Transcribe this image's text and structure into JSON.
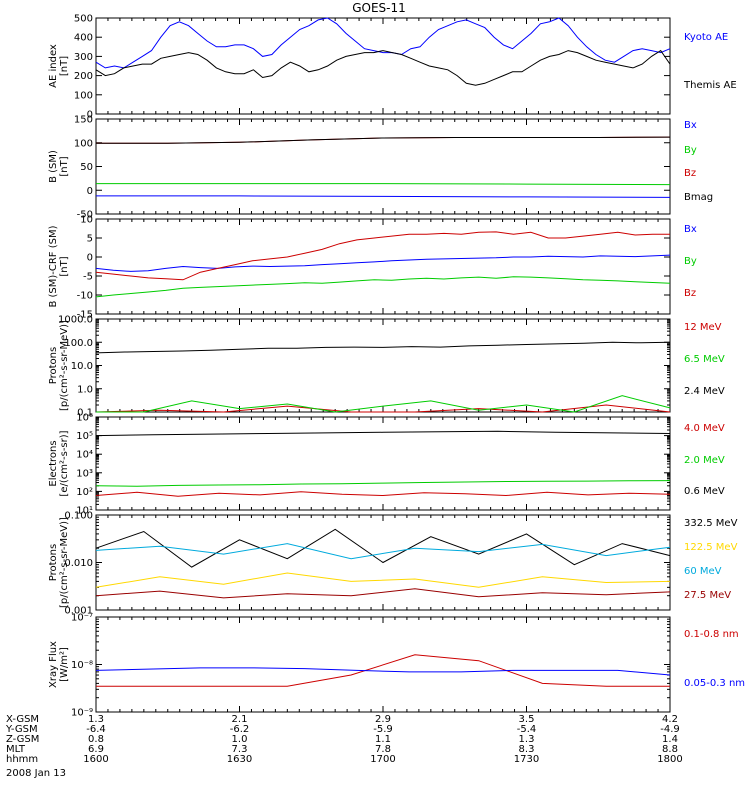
{
  "title": "GOES-11",
  "date_label": "2008 Jan 13",
  "colors": {
    "blue": "#0000ff",
    "green": "#00cc00",
    "red": "#cc0000",
    "darkred": "#990000",
    "black": "#000000",
    "yellow": "#ffd800",
    "cyan": "#00aadd"
  },
  "chart_data": [
    {
      "type": "line",
      "ylabel": [
        "AE index",
        "[nT]"
      ],
      "ylim": [
        0,
        500
      ],
      "yticks": [
        0,
        100,
        200,
        300,
        400,
        500
      ],
      "series": [
        {
          "name": "Kyoto AE",
          "color": "#0000ff",
          "values": [
            270,
            240,
            250,
            240,
            270,
            300,
            330,
            400,
            460,
            480,
            460,
            420,
            380,
            350,
            350,
            360,
            360,
            340,
            300,
            310,
            360,
            400,
            440,
            460,
            490,
            500,
            470,
            420,
            380,
            340,
            330,
            320,
            320,
            310,
            340,
            350,
            400,
            440,
            460,
            480,
            490,
            470,
            450,
            400,
            360,
            340,
            380,
            420,
            470,
            480,
            500,
            460,
            400,
            350,
            310,
            280,
            270,
            300,
            330,
            340,
            330,
            320,
            340
          ]
        },
        {
          "name": "Themis AE",
          "color": "#000000",
          "values": [
            230,
            200,
            210,
            240,
            250,
            260,
            260,
            290,
            300,
            310,
            320,
            310,
            280,
            240,
            220,
            210,
            210,
            230,
            190,
            200,
            240,
            270,
            250,
            220,
            230,
            250,
            280,
            300,
            310,
            320,
            320,
            330,
            320,
            310,
            290,
            270,
            250,
            240,
            230,
            200,
            160,
            150,
            160,
            180,
            200,
            220,
            220,
            250,
            280,
            300,
            310,
            330,
            320,
            300,
            280,
            270,
            260,
            250,
            240,
            260,
            300,
            330,
            260
          ]
        }
      ]
    },
    {
      "type": "line",
      "ylabel": [
        "B (SM)",
        "[nT]"
      ],
      "ylim": [
        -50,
        150
      ],
      "yticks": [
        -50,
        0,
        50,
        100,
        150
      ],
      "series": [
        {
          "name": "Bx",
          "color": "#0000ff",
          "values": [
            -12,
            -12,
            -13,
            -14,
            -15
          ]
        },
        {
          "name": "By",
          "color": "#00cc00",
          "values": [
            14,
            14,
            14,
            13,
            12
          ]
        },
        {
          "name": "Bz",
          "color": "#cc0000",
          "values": [
            99,
            99,
            101,
            106,
            110,
            111,
            111,
            111,
            112
          ]
        },
        {
          "name": "Bmag",
          "color": "#000000",
          "values": [
            99,
            99,
            101,
            106,
            110,
            111,
            111,
            111,
            112
          ]
        }
      ]
    },
    {
      "type": "line",
      "ylabel": [
        "B (SM)-CRF (SM)",
        "[nT]"
      ],
      "ylim": [
        -15,
        10
      ],
      "yticks": [
        -15,
        -10,
        -5,
        0,
        5,
        10
      ],
      "series": [
        {
          "name": "Bx",
          "color": "#0000ff",
          "values": [
            -3,
            -3.5,
            -3.8,
            -3.6,
            -3,
            -2.5,
            -2.8,
            -3,
            -2.6,
            -2.4,
            -2.5,
            -2.4,
            -2.3,
            -2,
            -1.8,
            -1.5,
            -1.3,
            -1,
            -0.8,
            -0.6,
            -0.5,
            -0.4,
            -0.3,
            -0.2,
            0,
            0,
            0.2,
            0.1,
            0,
            0.3,
            0.2,
            0.1,
            0.3,
            0.5
          ]
        },
        {
          "name": "By",
          "color": "#00cc00",
          "values": [
            -10.5,
            -10,
            -9.6,
            -9.2,
            -8.8,
            -8.2,
            -8,
            -7.8,
            -7.6,
            -7.4,
            -7.2,
            -7,
            -6.8,
            -6.9,
            -6.6,
            -6.3,
            -6,
            -6.1,
            -5.8,
            -5.6,
            -5.8,
            -5.5,
            -5.3,
            -5.6,
            -5.2,
            -5.3,
            -5.5,
            -5.7,
            -6,
            -6.1,
            -6.3,
            -6.5,
            -6.7,
            -6.9
          ]
        },
        {
          "name": "Bz",
          "color": "#cc0000",
          "values": [
            -4,
            -4.5,
            -5,
            -5.5,
            -5.7,
            -6,
            -4,
            -3,
            -2,
            -1,
            -0.5,
            0,
            1,
            2,
            3.5,
            4.5,
            5,
            5.5,
            6,
            6,
            6.2,
            6,
            6.5,
            6.6,
            6,
            6.5,
            5,
            5,
            5.5,
            6,
            6.5,
            5.8,
            6,
            6
          ]
        }
      ]
    },
    {
      "type": "line",
      "ylabel": [
        "Protons",
        "[p/(cm²-s-sr-MeV)]"
      ],
      "yscale": "log",
      "ylim": [
        0.1,
        1000
      ],
      "yticks": [
        0.1,
        1.0,
        10.0,
        100.0,
        1000.0
      ],
      "ytick_labels": [
        "0.1",
        "1.0",
        "10.0",
        "100.0",
        "1000.0"
      ],
      "series": [
        {
          "name": "12 MeV",
          "color": "#cc0000",
          "values": [
            0.1,
            0.12,
            0.1,
            0.18,
            0.1,
            0.1,
            0.14,
            0.1,
            0.2,
            0.1
          ]
        },
        {
          "name": "6.5 MeV",
          "color": "#00cc00",
          "values": [
            0.1,
            0.1,
            0.3,
            0.14,
            0.22,
            0.1,
            0.18,
            0.3,
            0.12,
            0.2,
            0.1,
            0.5,
            0.15
          ]
        },
        {
          "name": "2.4 MeV",
          "color": "#000000",
          "values": [
            35,
            38,
            40,
            42,
            45,
            50,
            55,
            55,
            60,
            62,
            60,
            65,
            62,
            70,
            75,
            80,
            85,
            90,
            100,
            95,
            100
          ]
        }
      ]
    },
    {
      "type": "line",
      "ylabel": [
        "Electrons",
        "[e/(cm²-s-sr)]"
      ],
      "yscale": "log",
      "ylim": [
        10,
        1000000
      ],
      "yticks": [
        10,
        100,
        1000,
        10000,
        100000,
        1000000
      ],
      "ytick_labels": [
        "10¹",
        "10²",
        "10³",
        "10⁴",
        "10⁵",
        "10⁶"
      ],
      "series": [
        {
          "name": "4.0 MeV",
          "color": "#cc0000",
          "values": [
            60,
            90,
            55,
            80,
            65,
            95,
            70,
            60,
            85,
            75,
            60,
            90,
            65,
            80,
            70
          ]
        },
        {
          "name": "2.0 MeV",
          "color": "#00cc00",
          "values": [
            200,
            190,
            210,
            220,
            230,
            250,
            260,
            280,
            300,
            320,
            340,
            350,
            360,
            370,
            380
          ]
        },
        {
          "name": "0.6 MeV",
          "color": "#000000",
          "values": [
            100000,
            110000,
            120000,
            130000,
            140000,
            150000,
            160000,
            170000,
            150000,
            140000,
            130000
          ]
        }
      ]
    },
    {
      "type": "line",
      "ylabel": [
        "Protons",
        "[p/(cm²-s-sr-MeV)]"
      ],
      "yscale": "log",
      "ylim": [
        0.001,
        0.1
      ],
      "yticks": [
        0.001,
        0.01,
        0.1
      ],
      "ytick_labels": [
        "0.001",
        "0.010",
        "0.100"
      ],
      "series": [
        {
          "name": "332.5 MeV",
          "color": "#000000",
          "values": [
            0.02,
            0.045,
            0.008,
            0.03,
            0.012,
            0.05,
            0.01,
            0.035,
            0.015,
            0.04,
            0.009,
            0.025,
            0.014
          ]
        },
        {
          "name": "122.5 MeV",
          "color": "#ffd800",
          "values": [
            0.003,
            0.005,
            0.0035,
            0.006,
            0.004,
            0.0045,
            0.003,
            0.005,
            0.0038,
            0.004
          ]
        },
        {
          "name": "60 MeV",
          "color": "#00aadd",
          "values": [
            0.018,
            0.022,
            0.015,
            0.025,
            0.012,
            0.02,
            0.017,
            0.024,
            0.014,
            0.021
          ]
        },
        {
          "name": "27.5 MeV",
          "color": "#990000",
          "values": [
            0.002,
            0.0025,
            0.0018,
            0.0022,
            0.002,
            0.0028,
            0.0019,
            0.0023,
            0.0021,
            0.0024
          ]
        }
      ]
    },
    {
      "type": "line",
      "ylabel": [
        "Xray Flux",
        "[W/m²]"
      ],
      "yscale": "log",
      "ylim": [
        1e-09,
        1e-07
      ],
      "yticks": [
        1e-09,
        1e-08,
        1e-07
      ],
      "ytick_labels": [
        "10⁻⁹",
        "10⁻⁸",
        "10⁻⁷"
      ],
      "series": [
        {
          "name": "0.1-0.8 nm",
          "color": "#cc0000",
          "values": [
            3.5e-09,
            3.5e-09,
            3.5e-09,
            3.5e-09,
            6e-09,
            1.6e-08,
            1.2e-08,
            4e-09,
            3.5e-09,
            3.5e-09
          ]
        },
        {
          "name": "0.05-0.3 nm",
          "color": "#0000ff",
          "values": [
            7.5e-09,
            8e-09,
            8.5e-09,
            8.5e-09,
            8.2e-09,
            7.5e-09,
            7e-09,
            7e-09,
            7.5e-09,
            7.5e-09,
            7.5e-09,
            6e-09
          ]
        }
      ]
    }
  ],
  "x_axis": {
    "row_labels": [
      "X-GSM",
      "Y-GSM",
      "Z-GSM",
      "MLT",
      "hhmm"
    ],
    "ticks": [
      {
        "x_gsm": "1.3",
        "y_gsm": "-6.4",
        "z_gsm": "0.8",
        "mlt": "6.9",
        "hhmm": "1600"
      },
      {
        "x_gsm": "2.1",
        "y_gsm": "-6.2",
        "z_gsm": "1.0",
        "mlt": "7.3",
        "hhmm": "1630"
      },
      {
        "x_gsm": "2.9",
        "y_gsm": "-5.9",
        "z_gsm": "1.1",
        "mlt": "7.8",
        "hhmm": "1700"
      },
      {
        "x_gsm": "3.5",
        "y_gsm": "-5.4",
        "z_gsm": "1.3",
        "mlt": "8.3",
        "hhmm": "1730"
      },
      {
        "x_gsm": "4.2",
        "y_gsm": "-4.9",
        "z_gsm": "1.4",
        "mlt": "8.8",
        "hhmm": "1800"
      }
    ]
  }
}
